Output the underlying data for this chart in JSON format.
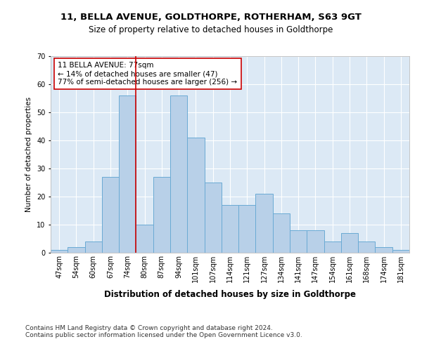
{
  "title1": "11, BELLA AVENUE, GOLDTHORPE, ROTHERHAM, S63 9GT",
  "title2": "Size of property relative to detached houses in Goldthorpe",
  "xlabel": "Distribution of detached houses by size in Goldthorpe",
  "ylabel": "Number of detached properties",
  "footer": "Contains HM Land Registry data © Crown copyright and database right 2024.\nContains public sector information licensed under the Open Government Licence v3.0.",
  "categories": [
    "47sqm",
    "54sqm",
    "60sqm",
    "67sqm",
    "74sqm",
    "80sqm",
    "87sqm",
    "94sqm",
    "101sqm",
    "107sqm",
    "114sqm",
    "121sqm",
    "127sqm",
    "134sqm",
    "141sqm",
    "147sqm",
    "154sqm",
    "161sqm",
    "168sqm",
    "174sqm",
    "181sqm"
  ],
  "values": [
    1,
    2,
    4,
    27,
    56,
    10,
    27,
    56,
    41,
    25,
    17,
    17,
    21,
    14,
    8,
    8,
    4,
    7,
    4,
    2,
    1
  ],
  "bar_color": "#b8d0e8",
  "bar_edge_color": "#6aaad4",
  "annotation_text": "11 BELLA AVENUE: 77sqm\n← 14% of detached houses are smaller (47)\n77% of semi-detached houses are larger (256) →",
  "vline_x_index": 4,
  "vline_color": "#cc0000",
  "annotation_box_facecolor": "#ffffff",
  "annotation_box_edgecolor": "#cc0000",
  "plot_bg_color": "#dce9f5",
  "ylim": [
    0,
    70
  ],
  "yticks": [
    0,
    10,
    20,
    30,
    40,
    50,
    60,
    70
  ],
  "title1_fontsize": 9.5,
  "title2_fontsize": 8.5,
  "ylabel_fontsize": 7.5,
  "xlabel_fontsize": 8.5,
  "tick_fontsize": 7,
  "annotation_fontsize": 7.5,
  "footer_fontsize": 6.5
}
